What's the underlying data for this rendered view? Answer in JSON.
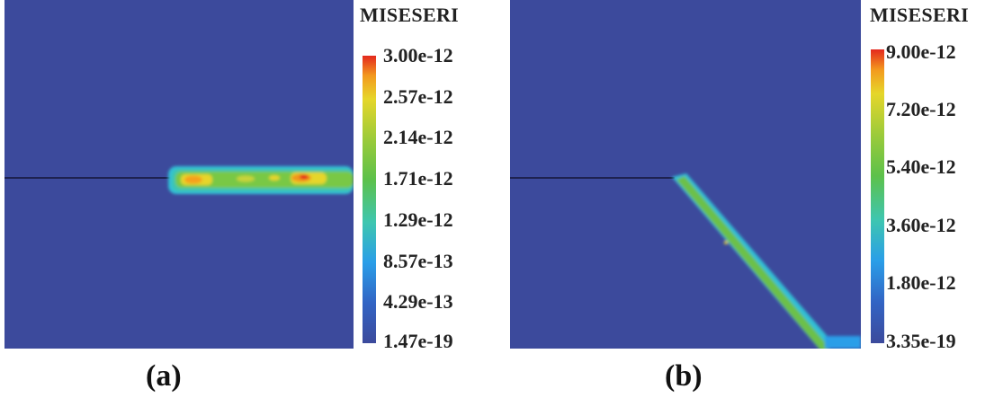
{
  "panels": [
    {
      "id": "a",
      "legend_title": "MISESERI",
      "ticks": [
        "3.00e-12",
        "2.57e-12",
        "2.14e-12",
        "1.71e-12",
        "1.29e-12",
        "8.57e-13",
        "4.29e-13",
        "1.47e-19"
      ],
      "caption": "(a)",
      "crack_path": "horizontal"
    },
    {
      "id": "b",
      "legend_title": "MISESERI",
      "ticks": [
        "9.00e-12",
        "7.20e-12",
        "5.40e-12",
        "3.60e-12",
        "1.80e-12",
        "3.35e-19"
      ],
      "caption": "(b)",
      "crack_path": "inclined"
    }
  ],
  "colors": {
    "background_field": "#3c4a9c",
    "colormap": [
      "#3c4a9c",
      "#2a9ee8",
      "#3ec6b0",
      "#5dc14a",
      "#9ccb3a",
      "#e6d62a",
      "#f39a1e",
      "#e4281e"
    ]
  }
}
